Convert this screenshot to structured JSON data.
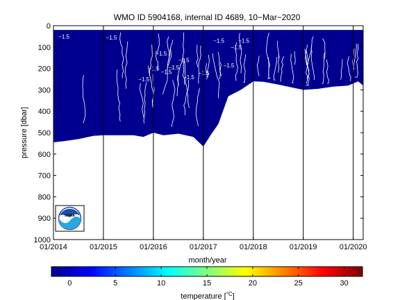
{
  "chart_data": {
    "type": "heatmap",
    "title": "WMO ID 5904168, internal ID 4689, 10−Mar−2020",
    "xlabel": "month/year",
    "ylabel": "pressure [dbar]",
    "colorbar_label": "temperature [",
    "colorbar_unit": "°C",
    "colorbar_close": "]",
    "x_tick_labels": [
      "01/2014",
      "01/2015",
      "01/2016",
      "01/2017",
      "01/2018",
      "01/2019",
      "01/2020"
    ],
    "x_tick_years": [
      2014,
      2015,
      2016,
      2017,
      2018,
      2019,
      2020
    ],
    "xlim": [
      2014.0,
      2020.2
    ],
    "y_tick_labels": [
      "0",
      "100",
      "200",
      "300",
      "400",
      "500",
      "600",
      "700",
      "800",
      "900",
      "1000"
    ],
    "y_tick_values": [
      0,
      100,
      200,
      300,
      400,
      500,
      600,
      700,
      800,
      900,
      1000
    ],
    "ylim": [
      0,
      1000
    ],
    "y_reversed": true,
    "colorbar_ticks": [
      "0",
      "5",
      "10",
      "15",
      "20",
      "25",
      "30"
    ],
    "colorbar_tick_values": [
      0,
      5,
      10,
      15,
      20,
      25,
      30
    ],
    "clim": [
      -2,
      32
    ],
    "colormap": "jet",
    "contour_level_label": "−1.5",
    "profile_depth_max": [
      [
        2014.0,
        545
      ],
      [
        2014.2,
        540
      ],
      [
        2014.5,
        530
      ],
      [
        2014.8,
        515
      ],
      [
        2015.0,
        512
      ],
      [
        2015.3,
        512
      ],
      [
        2015.6,
        512
      ],
      [
        2015.8,
        520
      ],
      [
        2016.0,
        500
      ],
      [
        2016.2,
        512
      ],
      [
        2016.5,
        505
      ],
      [
        2016.8,
        520
      ],
      [
        2017.0,
        565
      ],
      [
        2017.15,
        510
      ],
      [
        2017.3,
        460
      ],
      [
        2017.5,
        330
      ],
      [
        2017.75,
        300
      ],
      [
        2018.0,
        260
      ],
      [
        2018.2,
        262
      ],
      [
        2018.5,
        275
      ],
      [
        2018.8,
        290
      ],
      [
        2019.0,
        300
      ],
      [
        2019.3,
        295
      ],
      [
        2019.6,
        285
      ],
      [
        2019.9,
        280
      ],
      [
        2020.1,
        260
      ],
      [
        2020.2,
        280
      ]
    ],
    "profile_depth_min": 20,
    "field_temperature": -1.5,
    "logo_label": "NOAA",
    "colors": {
      "field": "#00008f",
      "contour": "#ffffff",
      "axes": "#000000",
      "logo_blue": "#1e4fa8",
      "logo_light": "#2aa6e0"
    }
  }
}
